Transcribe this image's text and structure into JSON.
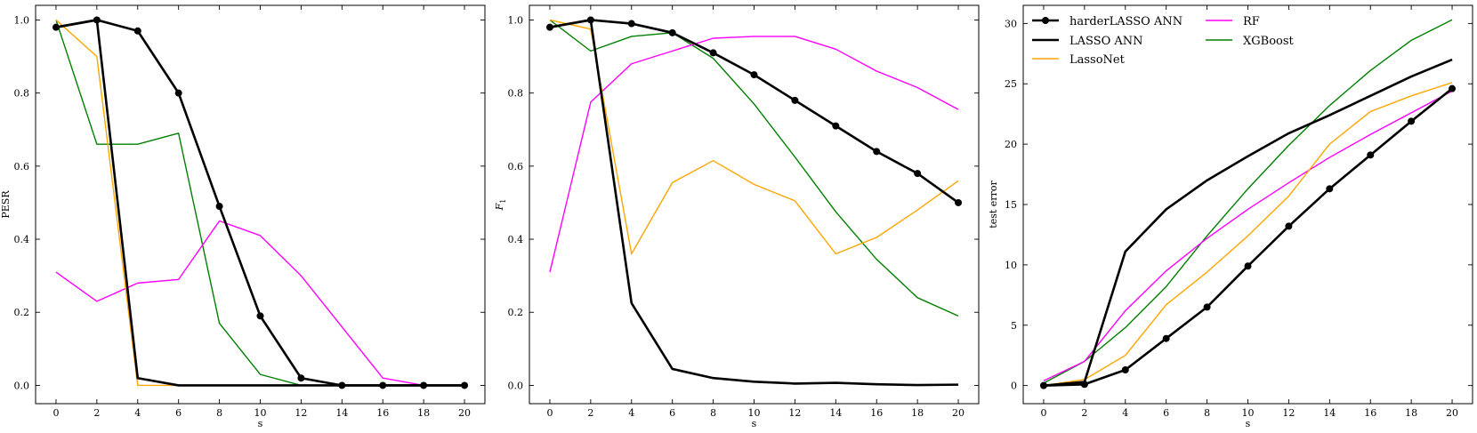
{
  "colors": {
    "harderlasso": "#000000",
    "lasso": "#000000",
    "lassonet": "#ffa500",
    "rf": "#ff00ff",
    "xgboost": "#008000"
  },
  "chart_data": [
    {
      "type": "line",
      "title": "",
      "xlabel": "s",
      "ylabel": "PESR",
      "xlim": [
        -1,
        21
      ],
      "ylim": [
        -0.05,
        1.04
      ],
      "xticks": [
        0,
        2,
        4,
        6,
        8,
        10,
        12,
        14,
        16,
        18,
        20
      ],
      "yticks": [
        0.0,
        0.2,
        0.4,
        0.6,
        0.8,
        1.0
      ],
      "ytick_labels": [
        "0.0",
        "0.2",
        "0.4",
        "0.6",
        "0.8",
        "1.0"
      ],
      "x": [
        0,
        2,
        4,
        6,
        8,
        10,
        12,
        14,
        16,
        18,
        20
      ],
      "series": [
        {
          "name": "harderLASSO ANN",
          "markers": true,
          "values": [
            0.98,
            1.0,
            0.97,
            0.8,
            0.49,
            0.19,
            0.02,
            0.0,
            0.0,
            0.0,
            0.0
          ]
        },
        {
          "name": "LASSO ANN",
          "markers": false,
          "values": [
            0.98,
            1.0,
            0.02,
            0.0,
            0.0,
            0.0,
            0.0,
            0.0,
            0.0,
            0.0,
            0.0
          ]
        },
        {
          "name": "LassoNet",
          "markers": false,
          "values": [
            1.0,
            0.9,
            0.0,
            0.0,
            0.0,
            0.0,
            0.0,
            0.0,
            0.0,
            0.0,
            0.0
          ]
        },
        {
          "name": "RF",
          "markers": false,
          "values": [
            0.31,
            0.23,
            0.28,
            0.29,
            0.45,
            0.41,
            0.3,
            0.16,
            0.02,
            0.0,
            0.0
          ]
        },
        {
          "name": "XGBoost",
          "markers": false,
          "values": [
            1.0,
            0.66,
            0.66,
            0.69,
            0.17,
            0.03,
            0.0,
            0.0,
            0.0,
            0.0,
            0.0
          ]
        }
      ]
    },
    {
      "type": "line",
      "title": "",
      "xlabel": "s",
      "ylabel": "F",
      "ylabel_sub": "1",
      "xlim": [
        -1,
        21
      ],
      "ylim": [
        -0.05,
        1.04
      ],
      "xticks": [
        0,
        2,
        4,
        6,
        8,
        10,
        12,
        14,
        16,
        18,
        20
      ],
      "yticks": [
        0.0,
        0.2,
        0.4,
        0.6,
        0.8,
        1.0
      ],
      "ytick_labels": [
        "0.0",
        "0.2",
        "0.4",
        "0.6",
        "0.8",
        "1.0"
      ],
      "x": [
        0,
        2,
        4,
        6,
        8,
        10,
        12,
        14,
        16,
        18,
        20
      ],
      "series": [
        {
          "name": "harderLASSO ANN",
          "markers": true,
          "values": [
            0.98,
            1.0,
            0.99,
            0.965,
            0.91,
            0.85,
            0.78,
            0.71,
            0.64,
            0.58,
            0.5
          ]
        },
        {
          "name": "LASSO ANN",
          "markers": false,
          "values": [
            0.98,
            1.0,
            0.225,
            0.045,
            0.02,
            0.01,
            0.005,
            0.007,
            0.003,
            0.001,
            0.002
          ]
        },
        {
          "name": "LassoNet",
          "markers": false,
          "values": [
            1.0,
            0.975,
            0.36,
            0.555,
            0.615,
            0.55,
            0.505,
            0.36,
            0.405,
            0.48,
            0.56
          ]
        },
        {
          "name": "RF",
          "markers": false,
          "values": [
            0.31,
            0.775,
            0.88,
            0.915,
            0.95,
            0.955,
            0.955,
            0.92,
            0.86,
            0.815,
            0.755
          ]
        },
        {
          "name": "XGBoost",
          "markers": false,
          "values": [
            1.0,
            0.915,
            0.955,
            0.965,
            0.895,
            0.77,
            0.625,
            0.475,
            0.345,
            0.24,
            0.19
          ]
        }
      ]
    },
    {
      "type": "line",
      "title": "",
      "xlabel": "s",
      "ylabel": "test error",
      "xlim": [
        -1,
        21
      ],
      "ylim": [
        -1.5,
        31.5
      ],
      "xticks": [
        0,
        2,
        4,
        6,
        8,
        10,
        12,
        14,
        16,
        18,
        20
      ],
      "yticks": [
        0,
        5,
        10,
        15,
        20,
        25,
        30
      ],
      "ytick_labels": [
        "0",
        "5",
        "10",
        "15",
        "20",
        "25",
        "30"
      ],
      "legend": "top-left, two columns",
      "x": [
        0,
        2,
        4,
        6,
        8,
        10,
        12,
        14,
        16,
        18,
        20
      ],
      "series": [
        {
          "name": "harderLASSO ANN",
          "markers": true,
          "values": [
            0.0,
            0.1,
            1.3,
            3.9,
            6.5,
            9.9,
            13.2,
            16.3,
            19.1,
            21.9,
            24.6
          ]
        },
        {
          "name": "LASSO ANN",
          "markers": false,
          "values": [
            0.0,
            0.3,
            11.1,
            14.6,
            17.0,
            19.0,
            20.9,
            22.4,
            24.0,
            25.6,
            27.0
          ]
        },
        {
          "name": "LassoNet",
          "markers": false,
          "values": [
            0.0,
            0.5,
            2.5,
            6.7,
            9.4,
            12.4,
            15.7,
            20.0,
            22.7,
            24.0,
            25.1
          ]
        },
        {
          "name": "RF",
          "markers": false,
          "values": [
            0.4,
            2.0,
            6.2,
            9.5,
            12.2,
            14.6,
            16.8,
            18.9,
            20.8,
            22.6,
            24.4
          ]
        },
        {
          "name": "XGBoost",
          "markers": false,
          "values": [
            0.2,
            2.0,
            4.8,
            8.2,
            12.4,
            16.3,
            19.9,
            23.2,
            26.1,
            28.6,
            30.3
          ]
        }
      ]
    }
  ]
}
